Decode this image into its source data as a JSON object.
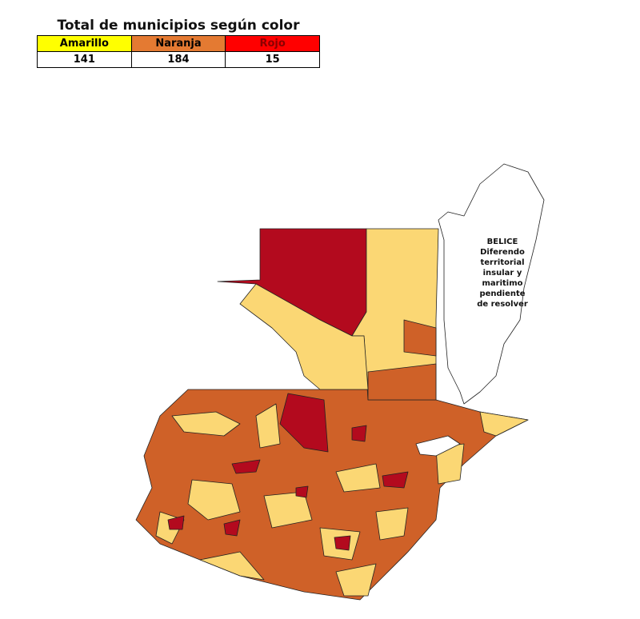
{
  "header": {
    "title": "Total de municipios según color"
  },
  "table": {
    "header": [
      "Amarillo",
      "Naranja",
      "Rojo"
    ],
    "rows": [
      [
        141,
        184,
        15
      ]
    ]
  },
  "map": {
    "belize_label": [
      "BELICE",
      "Diferendo",
      "territorial",
      "insular y",
      "maritimo",
      "pendiente",
      "de resolver"
    ]
  }
}
